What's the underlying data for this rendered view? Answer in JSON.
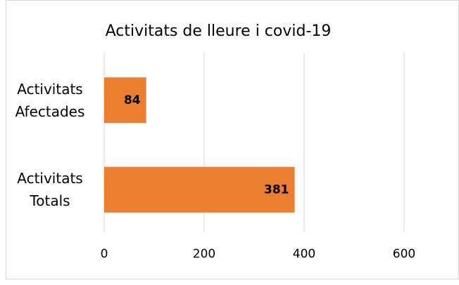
{
  "chart_data": {
    "type": "hbar",
    "title": "Activitats de lleure i covid-19",
    "categories": [
      "Activitats Afectades",
      "Activitats Totals"
    ],
    "values": [
      84,
      381
    ],
    "color": "#ed7d31",
    "xlim": [
      0,
      600
    ],
    "xticks": [
      0,
      200,
      400,
      600
    ],
    "grid": true
  }
}
